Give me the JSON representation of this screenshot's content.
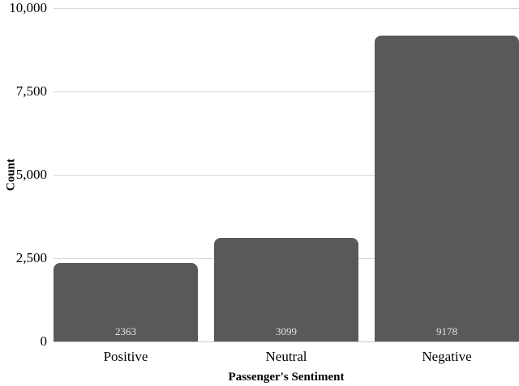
{
  "chart_data": {
    "type": "bar",
    "title": "",
    "categories": [
      "Positive",
      "Neutral",
      "Negative"
    ],
    "values": [
      2363,
      3099,
      9178
    ],
    "bar_labels": [
      "2363",
      "3099",
      "9178"
    ],
    "xlabel": "Passenger's Sentiment",
    "ylabel": "Count",
    "ylim": [
      0,
      10000
    ],
    "yticks": [
      0,
      2500,
      5000,
      7500,
      10000
    ],
    "ytick_labels": [
      "0",
      "2,500",
      "5,000",
      "7,500",
      "10,000"
    ],
    "grid": "horizontal-only",
    "legend": "none",
    "colors": {
      "bar_fill": "#595959",
      "bar_label_text": "#e3e3e3",
      "gridline": "#d9d9d9",
      "axis_line": "#c9c9c9",
      "text": "#000000",
      "background": "#ffffff"
    }
  }
}
